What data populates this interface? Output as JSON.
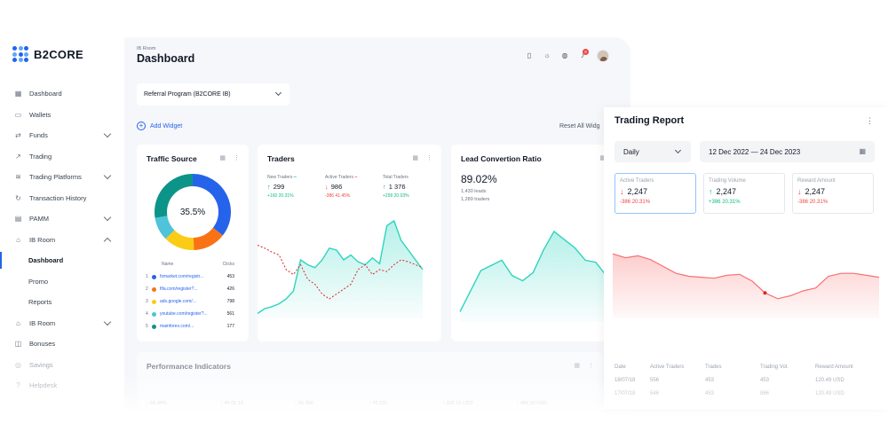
{
  "brand": "B2CORE",
  "sidebar": {
    "items": [
      {
        "label": "Dashboard",
        "icon": "grid-icon"
      },
      {
        "label": "Wallets",
        "icon": "wallet-icon"
      },
      {
        "label": "Funds",
        "icon": "transfer-icon"
      },
      {
        "label": "Trading",
        "icon": "chart-line-icon"
      },
      {
        "label": "Trading Platforms",
        "icon": "layers-icon"
      },
      {
        "label": "Transaction History",
        "icon": "history-icon"
      },
      {
        "label": "PAMM",
        "icon": "pamm-icon"
      },
      {
        "label": "IB Room",
        "icon": "ib-room-icon"
      },
      {
        "label": "Dashboard"
      },
      {
        "label": "Promo"
      },
      {
        "label": "Reports"
      },
      {
        "label": "IB Room",
        "icon": "ib-room-icon"
      },
      {
        "label": "Bonuses",
        "icon": "gift-icon"
      },
      {
        "label": "Savings",
        "icon": "savings-icon"
      },
      {
        "label": "Helpdesk",
        "icon": "help-icon"
      }
    ]
  },
  "header": {
    "breadcrumb": "IB Room",
    "title": "Dashboard",
    "notifications": "8"
  },
  "main": {
    "program_select": "Referral Program (B2CORE IB)",
    "add_widget": "Add Widget",
    "reset": "Reset All Widg"
  },
  "traffic": {
    "title": "Traffic Source",
    "center": "35.5%",
    "col_name": "Name",
    "col_clicks": "Clicks",
    "rows": [
      {
        "n": "1",
        "url": "fxmarket.com/registr...",
        "clicks": "453",
        "color": "#2563eb"
      },
      {
        "n": "2",
        "url": "fifa.com/register?...",
        "clicks": "426",
        "color": "#f97316"
      },
      {
        "n": "3",
        "url": "ads.google.com/...",
        "clicks": "798",
        "color": "#facc15"
      },
      {
        "n": "4",
        "url": "youtube.com/register?...",
        "clicks": "561",
        "color": "#4fc3d9"
      },
      {
        "n": "5",
        "url": "mainforex.com/...",
        "clicks": "177",
        "color": "#0d9488"
      }
    ]
  },
  "traders": {
    "title": "Traders",
    "new": {
      "label": "New Traders",
      "value": "299",
      "delta": "+160",
      "pct": "20.31%"
    },
    "active": {
      "label": "Active Traders",
      "value": "986",
      "delta": "-386",
      "pct": "41.45%"
    },
    "total": {
      "label": "Total Traders",
      "value": "1 376",
      "delta": "+299",
      "pct": "20.03%"
    }
  },
  "lead": {
    "title": "Lead Convertion Ratio",
    "value": "89.02%",
    "leads": "1,430 leads",
    "traders": "1,289 traders"
  },
  "performance": {
    "title": "Performance Indicators",
    "values": [
      "↑ 56.48%",
      "↑ 49 01 18",
      "↑ 56 000",
      "↑ 76 632",
      "↑ 326 16 USD",
      "↑ 482.39 USD"
    ]
  },
  "report": {
    "title": "Trading Report",
    "period": "Daily",
    "range": "12 Dec 2022 — 24 Dec 2023",
    "kpis": [
      {
        "label": "Active Traders",
        "value": "2,247",
        "dir": "down",
        "delta": "-386",
        "pct": "20.31%"
      },
      {
        "label": "Trading Volume",
        "value": "2,247",
        "dir": "up",
        "delta": "+386",
        "pct": "20.31%"
      },
      {
        "label": "Reward Amount",
        "value": "2,247",
        "dir": "down",
        "delta": "-386",
        "pct": "20.31%"
      }
    ],
    "table": {
      "headers": [
        "Date",
        "Active Traders",
        "Trades",
        "Trading Vol.",
        "Reward Amount"
      ],
      "rows": [
        [
          "18/07/18",
          "556",
          "453",
          "453",
          "120.49 USD"
        ],
        [
          "17/07/18",
          "546",
          "453",
          "866",
          "120.49 USD"
        ]
      ]
    }
  },
  "chart_data": [
    {
      "type": "pie",
      "title": "Traffic Source",
      "categories": [
        "fxmarket.com",
        "fifa.com",
        "ads.google.com",
        "youtube.com",
        "mainforex.com"
      ],
      "values": [
        35.5,
        14,
        13,
        10,
        27.5
      ]
    },
    {
      "type": "line",
      "title": "Traders",
      "series": [
        {
          "name": "New Traders",
          "values": [
            5,
            10,
            12,
            15,
            20,
            28,
            60,
            55,
            52,
            60,
            72,
            70,
            60,
            65,
            58,
            55,
            62,
            56,
            95,
            100,
            80,
            70,
            60,
            50
          ]
        },
        {
          "name": "Active Traders",
          "values": [
            75,
            72,
            68,
            65,
            50,
            45,
            55,
            40,
            35,
            25,
            20,
            25,
            30,
            35,
            50,
            55,
            45,
            50,
            48,
            55,
            60,
            58,
            55,
            52
          ]
        }
      ]
    },
    {
      "type": "area",
      "title": "Lead Convertion Ratio",
      "values": [
        10,
        30,
        50,
        55,
        60,
        45,
        40,
        48,
        70,
        88,
        80,
        72,
        60,
        58,
        45,
        50,
        55,
        62
      ]
    },
    {
      "type": "area",
      "title": "Trading Report",
      "values": [
        68,
        64,
        66,
        62,
        55,
        48,
        45,
        44,
        43,
        46,
        47,
        40,
        28,
        22,
        25,
        30,
        33,
        45,
        48,
        48,
        46,
        44
      ]
    }
  ]
}
